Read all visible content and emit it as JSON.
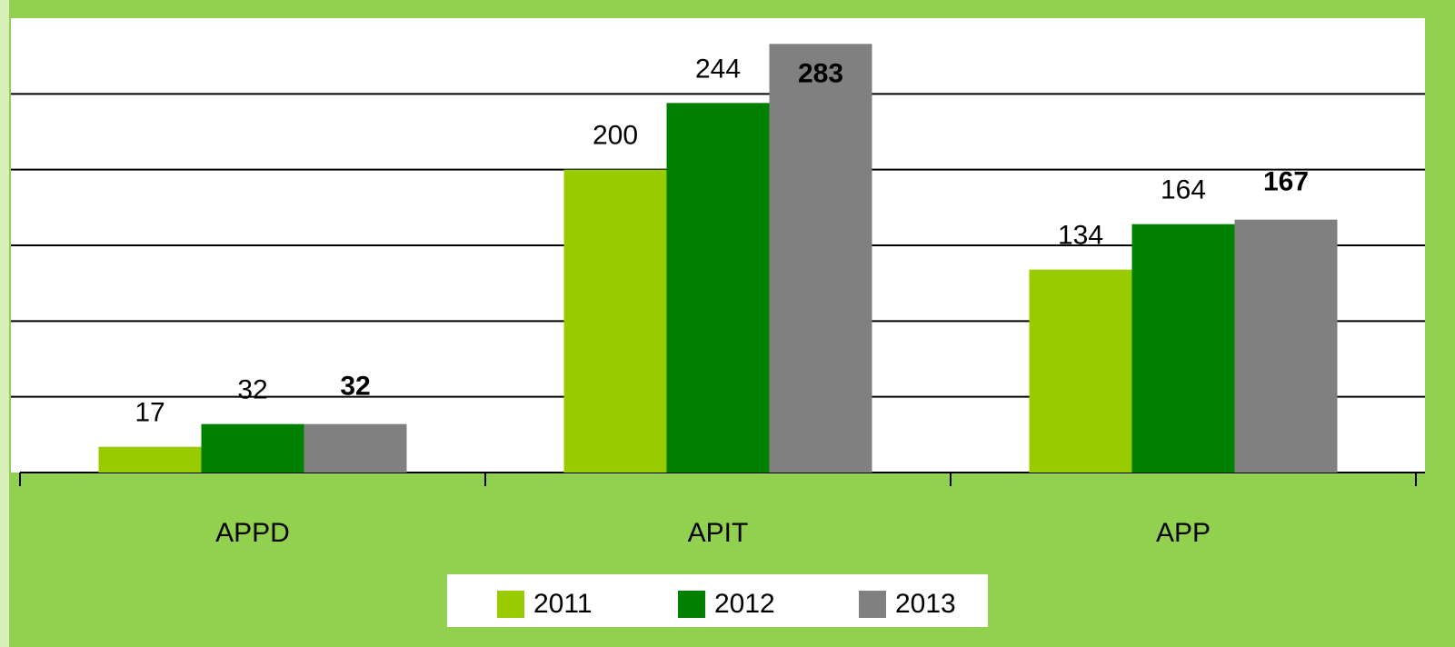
{
  "chart_data": {
    "type": "bar",
    "categories": [
      "APPD",
      "APIT",
      "APP"
    ],
    "series": [
      {
        "name": "2011",
        "color": "#99cc00",
        "values": [
          17,
          200,
          134
        ]
      },
      {
        "name": "2012",
        "color": "#008000",
        "values": [
          32,
          244,
          164
        ]
      },
      {
        "name": "2013",
        "color": "#808080",
        "values": [
          32,
          283,
          167
        ]
      }
    ],
    "ylim": [
      0,
      300
    ],
    "yticks": [
      0,
      50,
      100,
      150,
      200,
      250
    ],
    "grid": true,
    "legend": "bottom"
  }
}
